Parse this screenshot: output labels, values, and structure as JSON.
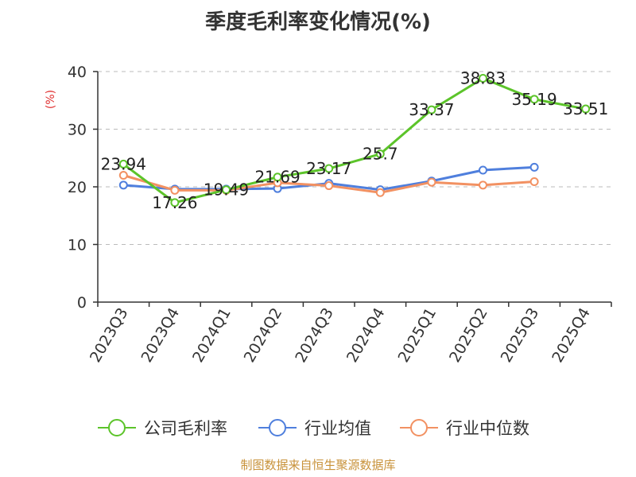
{
  "chart_data": {
    "type": "line",
    "title": "季度毛利率变化情况(%)",
    "ylabel": "(%)",
    "ylim": [
      0,
      40
    ],
    "yticks": [
      0,
      10,
      20,
      30,
      40
    ],
    "grid": true,
    "legend_position": "bottom",
    "categories": [
      "2023Q3",
      "2023Q4",
      "2024Q1",
      "2024Q2",
      "2024Q3",
      "2024Q4",
      "2025Q1",
      "2025Q2",
      "2025Q3",
      "2025Q4"
    ],
    "series": [
      {
        "name": "公司毛利率",
        "color": "#5cc42a",
        "values": [
          23.94,
          17.26,
          19.49,
          21.69,
          23.17,
          25.7,
          33.37,
          38.83,
          35.19,
          33.51
        ],
        "labels": [
          "23.94",
          "17.26",
          "19.49",
          "21.69",
          "23.17",
          "25.7",
          "33.37",
          "38.83",
          "35.19",
          "33.51"
        ]
      },
      {
        "name": "行业均值",
        "color": "#4f7fdd",
        "values": [
          20.3,
          19.6,
          19.6,
          19.7,
          20.6,
          19.5,
          21.0,
          22.9,
          23.4,
          null
        ]
      },
      {
        "name": "行业中位数",
        "color": "#f29162",
        "values": [
          22.0,
          19.4,
          19.4,
          20.7,
          20.2,
          19.0,
          20.8,
          20.3,
          20.9,
          null
        ]
      }
    ]
  },
  "source_text": "制图数据来自恒生聚源数据库",
  "colors": {
    "axis": "#333333",
    "grid": "#bbbbbb",
    "unit": "#e03030",
    "source": "#c8923a"
  }
}
